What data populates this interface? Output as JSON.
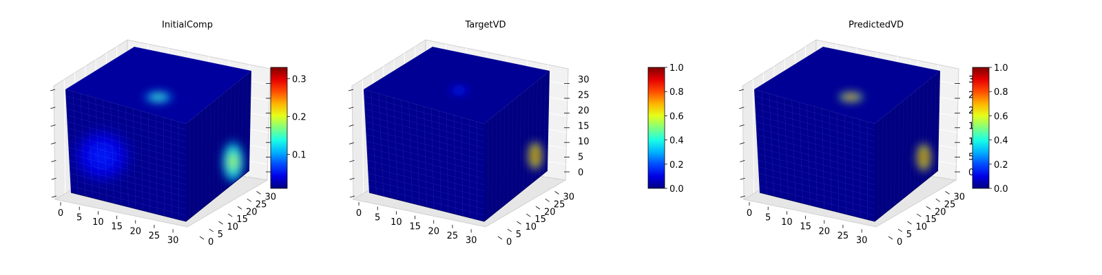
{
  "chart_data": [
    {
      "type": "heatmap",
      "title": "InitialComp",
      "axes": {
        "x_ticks": [
          "0",
          "5",
          "10",
          "15",
          "20",
          "25",
          "30"
        ],
        "y_ticks": [
          "0",
          "5",
          "10",
          "15",
          "20",
          "25",
          "30"
        ],
        "z_ticks": [],
        "range": [
          0,
          32
        ]
      },
      "colorbar": {
        "ticks": [
          "0.1",
          "0.2",
          "0.3"
        ],
        "min": 0.01,
        "max": 0.33,
        "colormap": "jet"
      },
      "blobs": [
        {
          "face": "top",
          "u": 0.6,
          "v": 0.3,
          "r": 0.16,
          "value": 0.16
        },
        {
          "face": "front",
          "u": 0.28,
          "v": 0.55,
          "r": 0.3,
          "value": 0.06
        },
        {
          "face": "right",
          "u": 0.72,
          "v": 0.78,
          "r": 0.25,
          "value": 0.2
        }
      ],
      "background_value": 0.02
    },
    {
      "type": "heatmap",
      "title": "TargetVD",
      "axes": {
        "x_ticks": [
          "0",
          "5",
          "10",
          "15",
          "20",
          "25",
          "30"
        ],
        "y_ticks": [
          "0",
          "5",
          "10",
          "15",
          "20",
          "25",
          "30"
        ],
        "z_ticks": [
          "0",
          "5",
          "10",
          "15",
          "20",
          "25",
          "30"
        ],
        "range": [
          0,
          32
        ]
      },
      "colorbar": {
        "ticks": [
          "0.0",
          "0.2",
          "0.4",
          "0.6",
          "0.8",
          "1.0"
        ],
        "min": 0.0,
        "max": 1.0,
        "colormap": "jet"
      },
      "blobs": [
        {
          "face": "top",
          "u": 0.55,
          "v": 0.42,
          "r": 0.12,
          "value": 0.18
        },
        {
          "face": "right",
          "u": 0.78,
          "v": 0.75,
          "r": 0.17,
          "value": 1.0
        }
      ],
      "background_value": 0.02
    },
    {
      "type": "heatmap",
      "title": "PredictedVD",
      "axes": {
        "x_ticks": [
          "0",
          "5",
          "10",
          "15",
          "20",
          "25",
          "30"
        ],
        "y_ticks": [
          "0",
          "5",
          "10",
          "15",
          "20",
          "25",
          "30"
        ],
        "z_ticks": [
          "0",
          "5",
          "10",
          "15",
          "20",
          "25",
          "30"
        ],
        "range": [
          0,
          32
        ]
      },
      "colorbar": {
        "ticks": [
          "0.0",
          "0.2",
          "0.4",
          "0.6",
          "0.8",
          "1.0"
        ],
        "min": 0.0,
        "max": 1.0,
        "colormap": "jet"
      },
      "blobs": [
        {
          "face": "top",
          "u": 0.62,
          "v": 0.32,
          "r": 0.14,
          "value": 0.85
        },
        {
          "face": "right",
          "u": 0.75,
          "v": 0.75,
          "r": 0.17,
          "value": 1.0
        }
      ],
      "background_value": 0.02
    }
  ]
}
